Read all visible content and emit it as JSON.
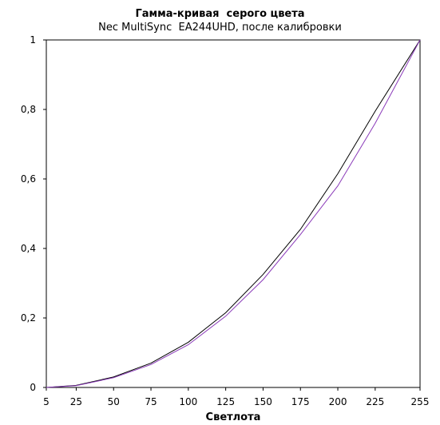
{
  "chart_data": {
    "type": "line",
    "title": "Гамма-кривая  серого цвета",
    "subtitle": "Nec MultiSync  EA244UHD, после калибровки",
    "xlabel": "Светлота",
    "ylabel": "",
    "x": [
      5,
      25,
      50,
      75,
      100,
      125,
      150,
      175,
      200,
      225,
      255
    ],
    "x_tick_labels": [
      "5",
      "25",
      "50",
      "75",
      "100",
      "125",
      "150",
      "175",
      "200",
      "225",
      "255"
    ],
    "y_ticks": [
      0,
      0.2,
      0.4,
      0.6,
      0.8,
      1
    ],
    "y_tick_labels": [
      "0",
      "0,2",
      "0,4",
      "0,6",
      "0,8",
      "1"
    ],
    "ylim": [
      0,
      1
    ],
    "grid": false,
    "legend": "none",
    "series": [
      {
        "color": "#000000",
        "values": [
          0,
          0.006,
          0.03,
          0.07,
          0.13,
          0.215,
          0.325,
          0.455,
          0.615,
          0.795,
          1
        ]
      },
      {
        "color": "#8a3ab9",
        "values": [
          0,
          0.005,
          0.028,
          0.066,
          0.123,
          0.205,
          0.31,
          0.44,
          0.58,
          0.76,
          1
        ]
      }
    ]
  }
}
